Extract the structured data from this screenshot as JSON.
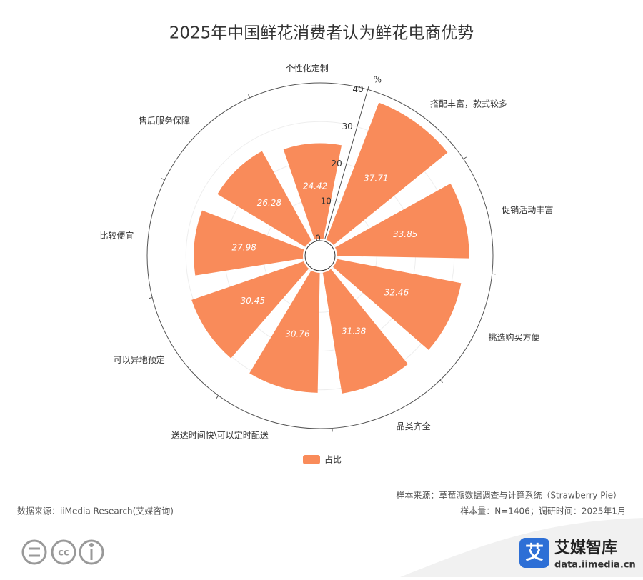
{
  "chart_data": {
    "type": "bar",
    "coord": "polar",
    "title": "2025年中国鲜花消费者认为鲜花电商优势",
    "categories": [
      "个性化定制",
      "搭配丰富，款式较多",
      "促销活动丰富",
      "挑选购买方便",
      "品类齐全",
      "送达时间快\\可以定时配送",
      "可以异地预定",
      "比较便宜",
      "售后服务保障"
    ],
    "series": [
      {
        "name": "占比",
        "color": "#f98b5a",
        "values": [
          24.42,
          37.71,
          33.85,
          32.46,
          31.38,
          30.76,
          30.45,
          27.98,
          26.28
        ]
      }
    ],
    "rlim": [
      0,
      40
    ],
    "rticks": [
      0,
      10,
      20,
      30,
      40
    ],
    "r_label": "%",
    "grid": true
  },
  "footer": {
    "source": "数据来源：iiMedia Research(艾媒咨询)",
    "sample_source": "样本来源：草莓派数据调查与计算系统（Strawberry Pie）",
    "sample_info": "样本量：N=1406；调研时间：2025年1月",
    "brand": "艾媒智库",
    "brand_url": "data.iimedia.cn"
  }
}
